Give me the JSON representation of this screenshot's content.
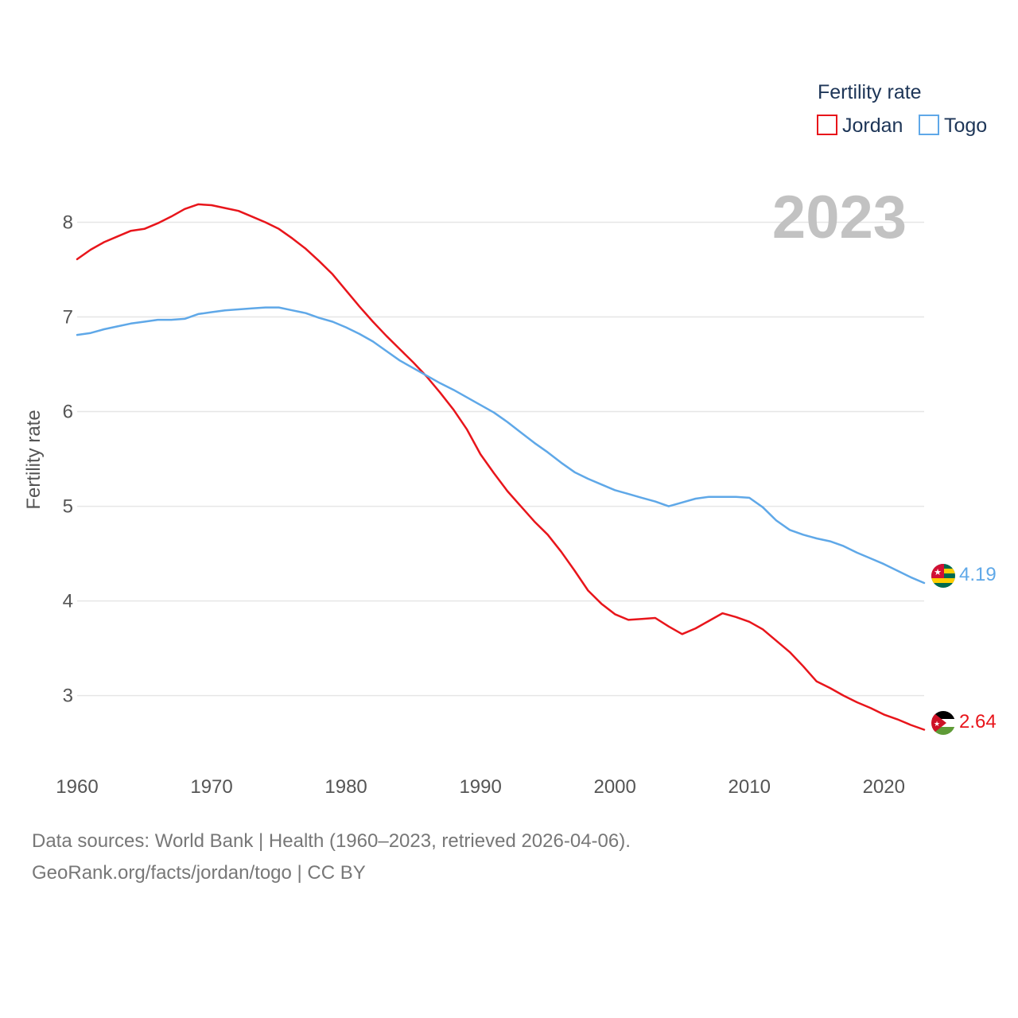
{
  "chart_data": {
    "type": "line",
    "title": "2023",
    "ylabel": "Fertility rate",
    "xlabel": "",
    "xlim": [
      1960,
      2023
    ],
    "ylim": [
      2.35,
      8.55
    ],
    "x_ticks": [
      1960,
      1970,
      1980,
      1990,
      2000,
      2010,
      2020
    ],
    "y_ticks": [
      3,
      4,
      5,
      6,
      7,
      8
    ],
    "grid": true,
    "legend": {
      "title": "Fertility rate",
      "placement": "top-right"
    },
    "series": [
      {
        "name": "Jordan",
        "color": "#e8151b",
        "end_label": "2.64",
        "flag": "jordan-flag-icon",
        "x": [
          1960,
          1961,
          1962,
          1963,
          1964,
          1965,
          1966,
          1967,
          1968,
          1969,
          1970,
          1971,
          1972,
          1973,
          1974,
          1975,
          1976,
          1977,
          1978,
          1979,
          1980,
          1981,
          1982,
          1983,
          1984,
          1985,
          1986,
          1987,
          1988,
          1989,
          1990,
          1991,
          1992,
          1993,
          1994,
          1995,
          1996,
          1997,
          1998,
          1999,
          2000,
          2001,
          2002,
          2003,
          2004,
          2005,
          2006,
          2007,
          2008,
          2009,
          2010,
          2011,
          2012,
          2013,
          2014,
          2015,
          2016,
          2017,
          2018,
          2019,
          2020,
          2021,
          2022,
          2023
        ],
        "values": [
          7.61,
          7.71,
          7.79,
          7.85,
          7.91,
          7.93,
          7.99,
          8.06,
          8.14,
          8.19,
          8.18,
          8.15,
          8.12,
          8.06,
          8.0,
          7.93,
          7.83,
          7.72,
          7.59,
          7.45,
          7.28,
          7.11,
          6.95,
          6.8,
          6.66,
          6.52,
          6.37,
          6.2,
          6.02,
          5.81,
          5.55,
          5.35,
          5.16,
          5.0,
          4.84,
          4.7,
          4.52,
          4.32,
          4.11,
          3.97,
          3.86,
          3.8,
          3.81,
          3.82,
          3.73,
          3.65,
          3.71,
          3.79,
          3.87,
          3.83,
          3.78,
          3.7,
          3.58,
          3.46,
          3.31,
          3.15,
          3.08,
          3.0,
          2.93,
          2.87,
          2.8,
          2.75,
          2.69,
          2.64
        ]
      },
      {
        "name": "Togo",
        "color": "#5fa8e8",
        "end_label": "4.19",
        "flag": "togo-flag-icon",
        "x": [
          1960,
          1961,
          1962,
          1963,
          1964,
          1965,
          1966,
          1967,
          1968,
          1969,
          1970,
          1971,
          1972,
          1973,
          1974,
          1975,
          1976,
          1977,
          1978,
          1979,
          1980,
          1981,
          1982,
          1983,
          1984,
          1985,
          1986,
          1987,
          1988,
          1989,
          1990,
          1991,
          1992,
          1993,
          1994,
          1995,
          1996,
          1997,
          1998,
          1999,
          2000,
          2001,
          2002,
          2003,
          2004,
          2005,
          2006,
          2007,
          2008,
          2009,
          2010,
          2011,
          2012,
          2013,
          2014,
          2015,
          2016,
          2017,
          2018,
          2019,
          2020,
          2021,
          2022,
          2023
        ],
        "values": [
          6.81,
          6.83,
          6.87,
          6.9,
          6.93,
          6.95,
          6.97,
          6.97,
          6.98,
          7.03,
          7.05,
          7.07,
          7.08,
          7.09,
          7.1,
          7.1,
          7.07,
          7.04,
          6.99,
          6.95,
          6.89,
          6.82,
          6.74,
          6.64,
          6.54,
          6.46,
          6.38,
          6.3,
          6.23,
          6.15,
          6.07,
          5.99,
          5.89,
          5.78,
          5.67,
          5.57,
          5.46,
          5.36,
          5.29,
          5.23,
          5.17,
          5.13,
          5.09,
          5.05,
          5.0,
          5.04,
          5.08,
          5.1,
          5.1,
          5.1,
          5.09,
          4.99,
          4.85,
          4.75,
          4.7,
          4.66,
          4.63,
          4.58,
          4.51,
          4.45,
          4.39,
          4.32,
          4.25,
          4.19
        ]
      }
    ]
  },
  "footer": {
    "line1": "Data sources: World Bank | Health (1960–2023, retrieved 2026-04-06).",
    "line2": "GeoRank.org/facts/jordan/togo | CC BY"
  }
}
